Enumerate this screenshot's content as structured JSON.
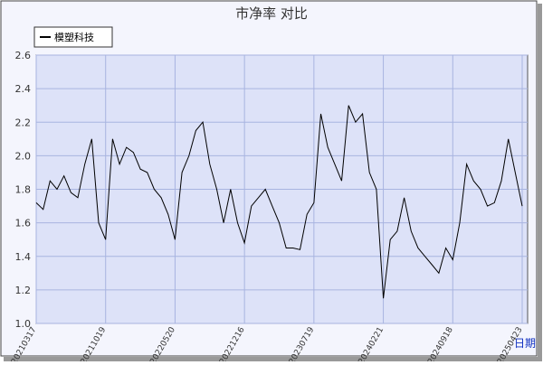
{
  "chart_data": {
    "type": "line",
    "title": "市净率 对比",
    "x_label": "日期",
    "categories": [
      "20210317",
      null,
      null,
      null,
      null,
      null,
      null,
      null,
      null,
      null,
      "20211019",
      null,
      null,
      null,
      null,
      null,
      null,
      null,
      null,
      null,
      "20220520",
      null,
      null,
      null,
      null,
      null,
      null,
      null,
      null,
      null,
      "20221216",
      null,
      null,
      null,
      null,
      null,
      null,
      null,
      null,
      null,
      "20230719",
      null,
      null,
      null,
      null,
      null,
      null,
      null,
      null,
      null,
      "20240221",
      null,
      null,
      null,
      null,
      null,
      null,
      null,
      null,
      null,
      "20240918",
      null,
      null,
      null,
      null,
      null,
      null,
      null,
      null,
      null,
      "20250423"
    ],
    "series": [
      {
        "name": "模塑科技",
        "color": "#000000",
        "values": [
          1.72,
          1.68,
          1.85,
          1.8,
          1.88,
          1.78,
          1.75,
          1.95,
          2.1,
          1.6,
          1.5,
          2.1,
          1.95,
          2.05,
          2.02,
          1.92,
          1.9,
          1.8,
          1.75,
          1.65,
          1.5,
          1.9,
          2.0,
          2.15,
          2.2,
          1.95,
          1.8,
          1.6,
          1.8,
          1.6,
          1.48,
          1.7,
          1.75,
          1.8,
          1.7,
          1.6,
          1.45,
          1.45,
          1.44,
          1.65,
          1.72,
          2.25,
          2.05,
          1.95,
          1.85,
          2.3,
          2.2,
          2.25,
          1.9,
          1.8,
          1.15,
          1.5,
          1.55,
          1.75,
          1.55,
          1.45,
          1.4,
          1.35,
          1.3,
          1.45,
          1.38,
          1.6,
          1.95,
          1.85,
          1.8,
          1.7,
          1.72,
          1.85,
          2.1,
          1.9,
          1.7
        ]
      }
    ],
    "ylim": [
      1.0,
      2.6
    ],
    "yticks": [
      {
        "value": 1.0,
        "label": "1.0"
      },
      1.2,
      1.4,
      1.6,
      1.8,
      {
        "value": 2.0,
        "label": "2.0"
      },
      2.2,
      2.4,
      2.6
    ],
    "grid": true,
    "legend": "top-left"
  }
}
